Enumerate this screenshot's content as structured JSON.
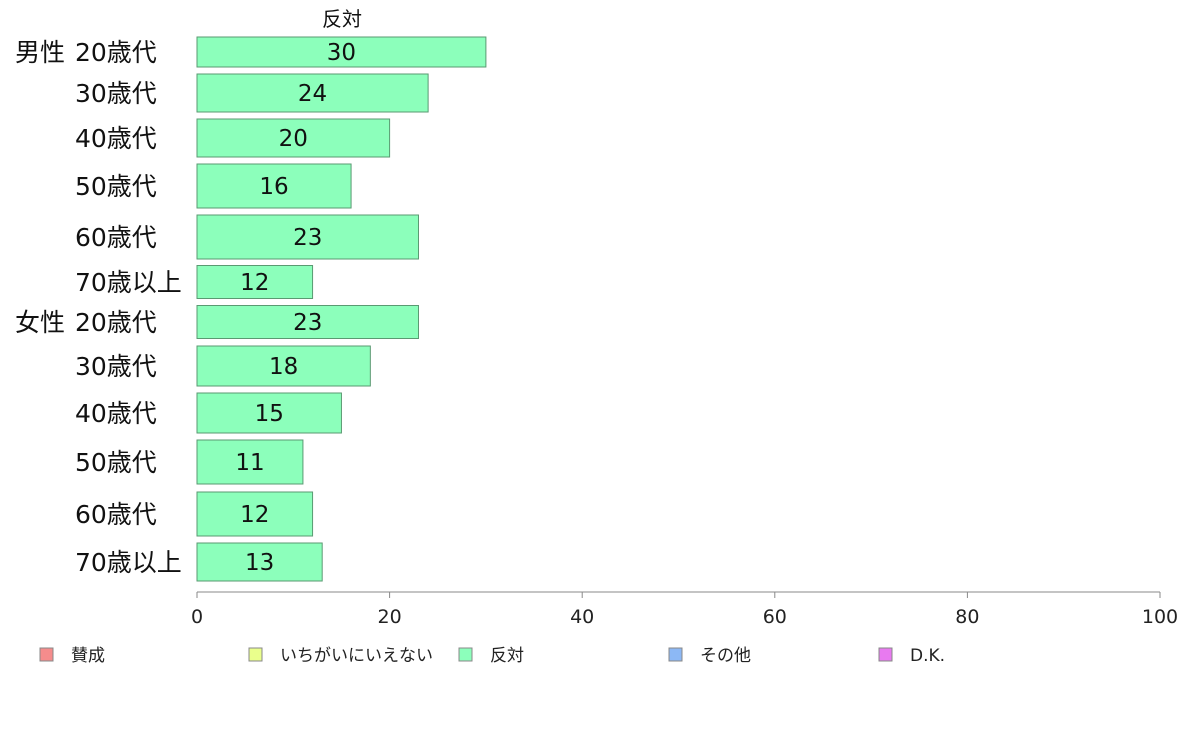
{
  "chart_data": {
    "type": "bar",
    "orientation": "horizontal",
    "title": "",
    "series_title": "反対",
    "xlim": [
      0,
      100
    ],
    "xticks": [
      0,
      20,
      40,
      60,
      80,
      100
    ],
    "grid": false,
    "legend_position": "bottom",
    "categories": [
      {
        "group": "男性",
        "label": "20歳代",
        "value": 30
      },
      {
        "group": "",
        "label": "30歳代",
        "value": 24
      },
      {
        "group": "",
        "label": "40歳代",
        "value": 20
      },
      {
        "group": "",
        "label": "50歳代",
        "value": 16
      },
      {
        "group": "",
        "label": "60歳代",
        "value": 23
      },
      {
        "group": "",
        "label": "70歳以上",
        "value": 12
      },
      {
        "group": "女性",
        "label": "20歳代",
        "value": 23
      },
      {
        "group": "",
        "label": "30歳代",
        "value": 18
      },
      {
        "group": "",
        "label": "40歳代",
        "value": 15
      },
      {
        "group": "",
        "label": "50歳代",
        "value": 11
      },
      {
        "group": "",
        "label": "60歳代",
        "value": 12
      },
      {
        "group": "",
        "label": "70歳以上",
        "value": 13
      }
    ],
    "series": [
      {
        "name": "反対",
        "color": "#8cffbb",
        "values": [
          30,
          24,
          20,
          16,
          23,
          12,
          23,
          18,
          15,
          11,
          12,
          13
        ]
      }
    ],
    "legend": [
      {
        "label": "賛成",
        "color": "#f58c8c"
      },
      {
        "label": "いちがいにいえない",
        "color": "#eaff8c"
      },
      {
        "label": "反対",
        "color": "#8cffbb"
      },
      {
        "label": "その他",
        "color": "#8cb8f5"
      },
      {
        "label": "D.K.",
        "color": "#e87af0"
      }
    ]
  }
}
